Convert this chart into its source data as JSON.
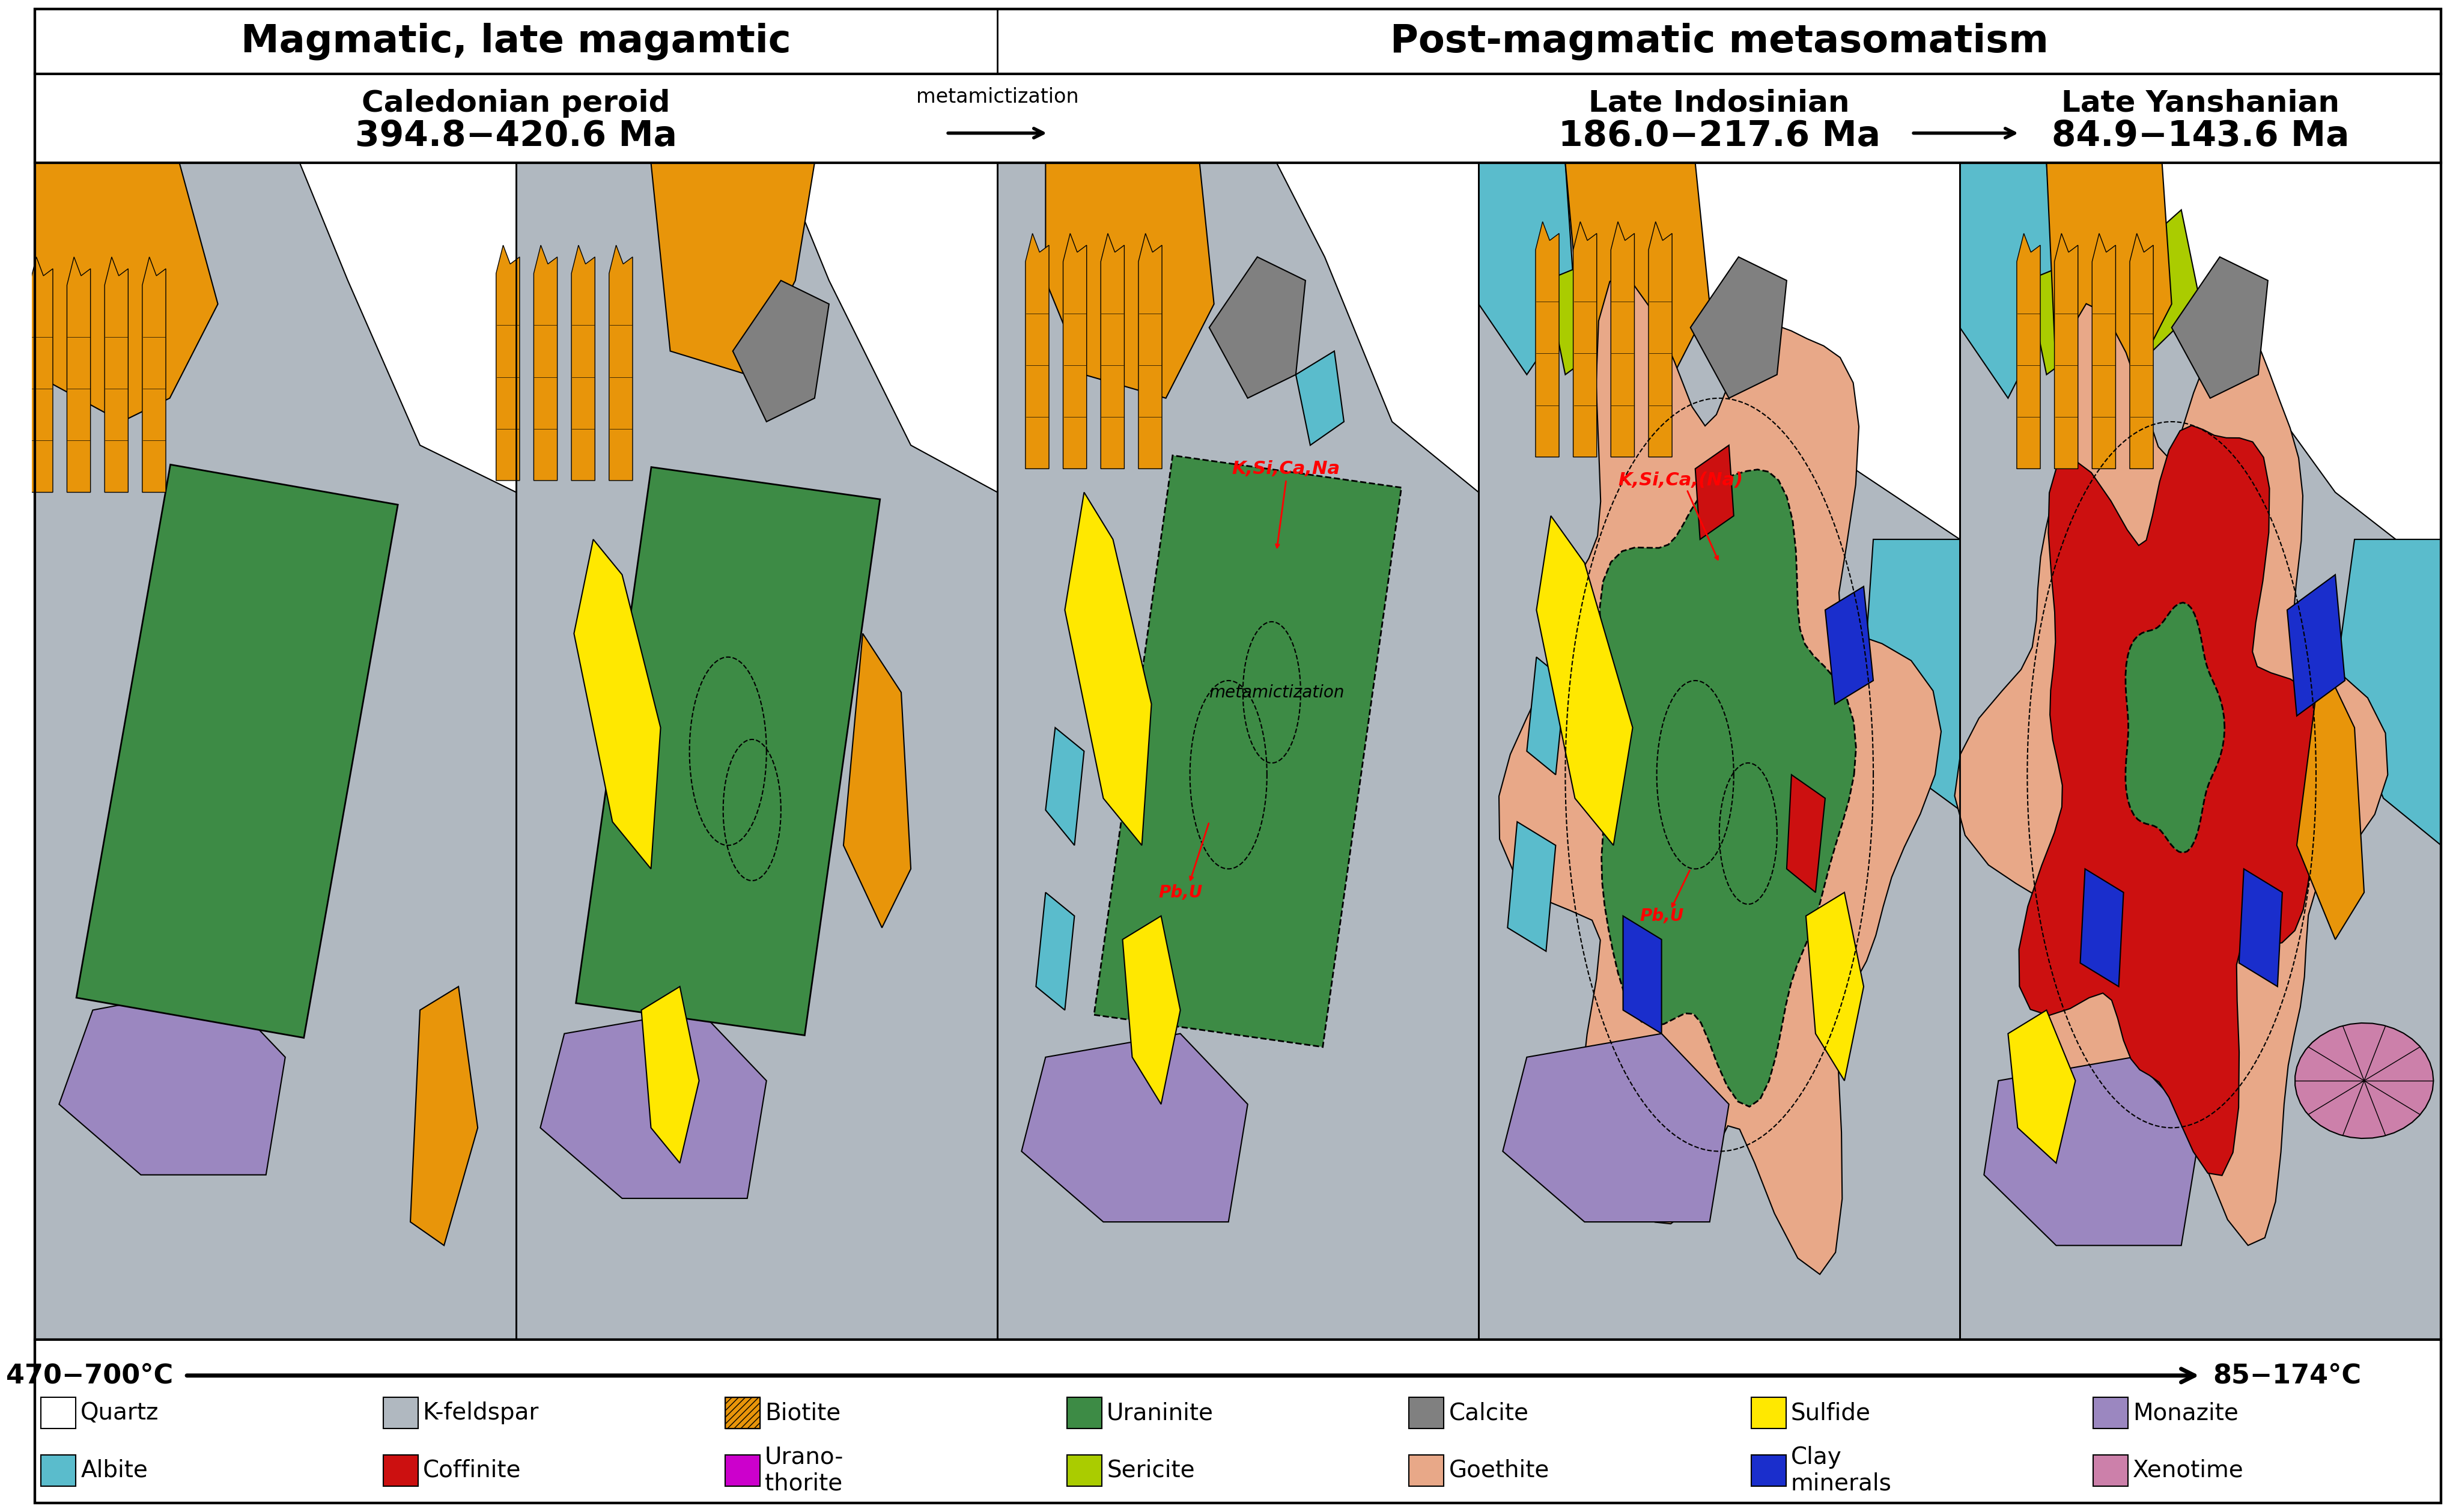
{
  "title_left": "Magmatic, late magamtic",
  "title_right": "Post-magmatic metasomatism",
  "period1_title": "Caledonian peroid",
  "period1_dates": "394.8−420.6 Ma",
  "period2_title": "Late Indosinian",
  "period2_dates": "186.0−217.6 Ma",
  "period3_title": "Late Yanshanian",
  "period3_dates": "84.9−143.6 Ma",
  "metamict_label": "metamictization",
  "temp_left": "470−700°C",
  "temp_right": "85−174°C",
  "uraninite_c": "#3D8B45",
  "biotite_c": "#E8950A",
  "quartz_c": "#FFFFFF",
  "calcite_c": "#808080",
  "sulfide_c": "#FFE800",
  "monazite_c": "#9B87C0",
  "albite_c": "#5ABCCC",
  "coffinite_c": "#CC1010",
  "sericite_c": "#AACC00",
  "goethite_c": "#E8A888",
  "clay_c": "#1A2ECC",
  "xenotime_c": "#CC80AA",
  "kfeld_c": "#B0B8C0",
  "gray_bg": "#B0B8C0",
  "legend_row1": [
    {
      "label": "Quartz",
      "color": "#FFFFFF"
    },
    {
      "label": "K-feldspar",
      "color": "#B0B8C0"
    },
    {
      "label": "Biotite",
      "color": "#E8950A",
      "hatch": "///"
    },
    {
      "label": "Uraninite",
      "color": "#3D8B45"
    },
    {
      "label": "Calcite",
      "color": "#808080"
    },
    {
      "label": "Sulfide",
      "color": "#FFE800"
    },
    {
      "label": "Monazite",
      "color": "#9B87C0"
    }
  ],
  "legend_row2": [
    {
      "label": "Albite",
      "color": "#5ABCCC"
    },
    {
      "label": "Coffinite",
      "color": "#CC1010"
    },
    {
      "label": "Urano-\nthorite",
      "color": "#CC00CC"
    },
    {
      "label": "Sericite",
      "color": "#AACC00"
    },
    {
      "label": "Goethite",
      "color": "#E8A888"
    },
    {
      "label": "Clay\nminerals",
      "color": "#1A2ECC"
    },
    {
      "label": "Xenotime",
      "color": "#CC80AA"
    }
  ]
}
